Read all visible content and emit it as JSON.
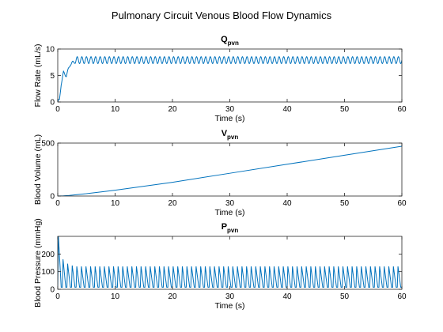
{
  "figure": {
    "title": "Pulmonary Circuit Venous Blood Flow Dynamics"
  },
  "chart_data": [
    {
      "type": "line",
      "title_main": "Q",
      "title_sub": "pvn",
      "xlabel": "Time (s)",
      "ylabel": "Flow Rate (mL/s)",
      "xlim": [
        0,
        60
      ],
      "ylim": [
        0,
        10
      ],
      "xticks": [
        0,
        10,
        20,
        30,
        40,
        50,
        60
      ],
      "yticks": [
        0,
        5,
        10
      ],
      "grid": false,
      "series_color": "#0072BD",
      "signal": {
        "kind": "oscillation",
        "t_start": 0,
        "t_end": 60,
        "period_s": 0.8,
        "initial_value": 0,
        "rise": [
          [
            0,
            0
          ],
          [
            0.3,
            0.3
          ],
          [
            0.6,
            3.5
          ],
          [
            1.0,
            5.5
          ],
          [
            1.5,
            5.0
          ],
          [
            2.2,
            7.2
          ],
          [
            3.0,
            7.6
          ]
        ],
        "steady_mean": 7.9,
        "steady_amplitude": 0.65,
        "steady_from_s": 3.0
      }
    },
    {
      "type": "line",
      "title_main": "V",
      "title_sub": "pvn",
      "xlabel": "Time (s)",
      "ylabel": "Blood Volume (mL)",
      "xlim": [
        0,
        60
      ],
      "ylim": [
        0,
        500
      ],
      "xticks": [
        0,
        10,
        20,
        30,
        40,
        50,
        60
      ],
      "yticks": [
        0,
        500
      ],
      "grid": false,
      "series_color": "#0072BD",
      "x": [
        0,
        1,
        2,
        5,
        10,
        20,
        30,
        40,
        50,
        60
      ],
      "y": [
        0,
        2,
        6,
        22,
        55,
        130,
        215,
        300,
        385,
        470
      ]
    },
    {
      "type": "line",
      "title_main": "P",
      "title_sub": "pvn",
      "xlabel": "Time (s)",
      "ylabel": "Blood Pressure (mmHg)",
      "xlim": [
        0,
        60
      ],
      "ylim": [
        0,
        300
      ],
      "xticks": [
        0,
        10,
        20,
        30,
        40,
        50,
        60
      ],
      "yticks": [
        0,
        100,
        200
      ],
      "grid": false,
      "series_color": "#0072BD",
      "signal": {
        "kind": "pulse_train",
        "t_start": 0,
        "t_end": 60,
        "period_s": 0.8,
        "baseline": 12,
        "initial_peaks": [
          300,
          170,
          145,
          135
        ],
        "steady_peak": 130,
        "peak_phase": 0.15,
        "decay_phase": 0.75
      }
    }
  ]
}
